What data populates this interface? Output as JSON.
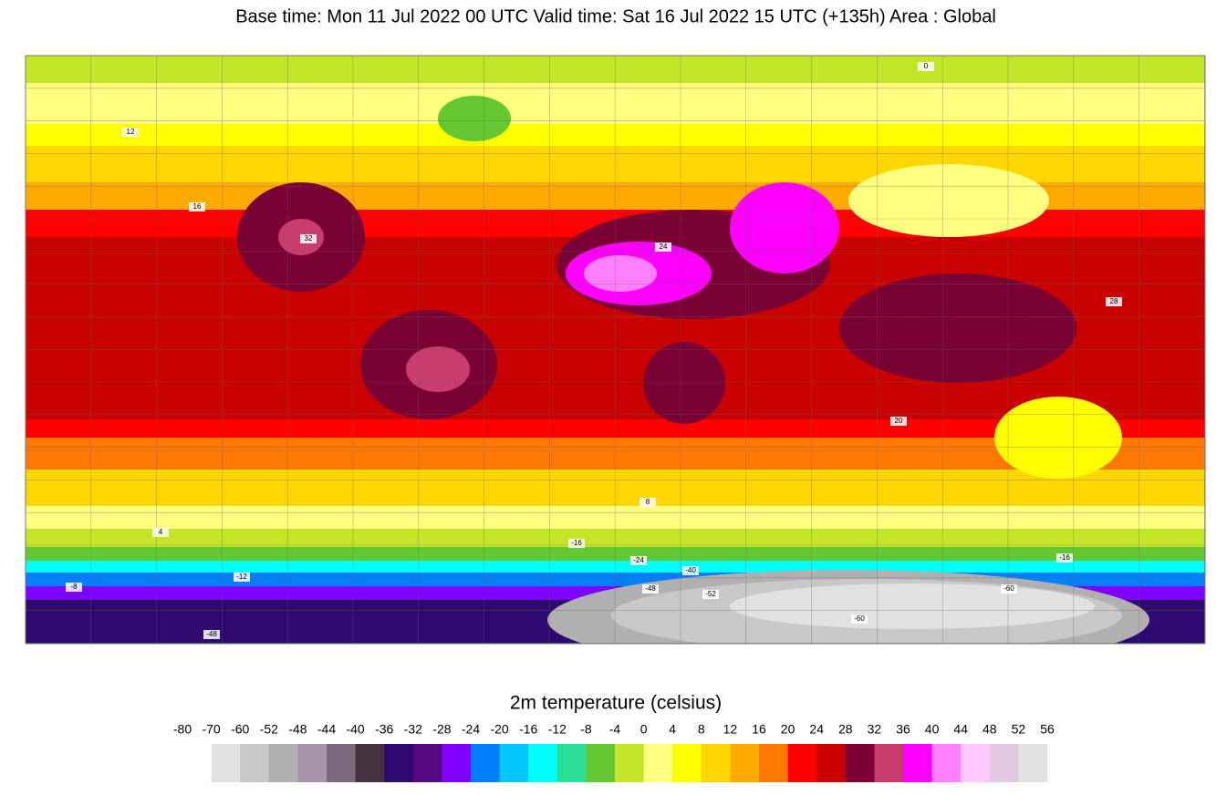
{
  "header": {
    "title": "Base time: Mon 11 Jul 2022 00 UTC Valid time: Sat 16 Jul 2022 15 UTC (+135h) Area : Global"
  },
  "map": {
    "labels": [
      "0",
      "12",
      "16",
      "32",
      "24",
      "28",
      "20",
      "8",
      "4",
      "-12",
      "-8",
      "-16",
      "-24",
      "-40",
      "-48",
      "-52",
      "-60",
      "-60",
      "-16",
      "-48"
    ]
  },
  "colorbar": {
    "title": "2m temperature (celsius)",
    "labels": [
      -80,
      -70,
      -60,
      -52,
      -48,
      -44,
      -40,
      -36,
      -32,
      -28,
      -24,
      -20,
      -16,
      -12,
      -8,
      -4,
      0,
      4,
      8,
      12,
      16,
      20,
      24,
      28,
      32,
      36,
      40,
      44,
      48,
      52,
      56
    ],
    "colors": [
      "#e1e1e1",
      "#c8c8c8",
      "#b0b0b0",
      "#a693aa",
      "#7b6a7e",
      "#46323f",
      "#2e0a6e",
      "#530a80",
      "#8000ff",
      "#0080ff",
      "#00c8ff",
      "#00ffff",
      "#28e196",
      "#64c832",
      "#c3e628",
      "#ffff80",
      "#ffff00",
      "#ffd700",
      "#ffaa00",
      "#ff7800",
      "#ff0000",
      "#c80000",
      "#780032",
      "#c83c6e",
      "#ff00ff",
      "#ff80ff",
      "#ffc8ff",
      "#e1c8e1",
      "#e1e1e1"
    ]
  }
}
